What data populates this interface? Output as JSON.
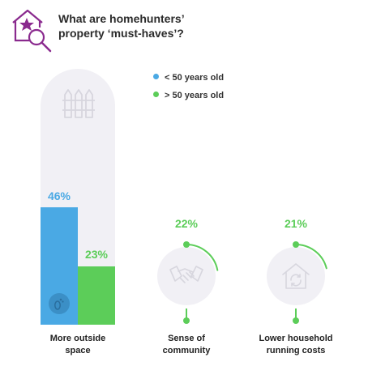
{
  "title_line1": "What are homehunters’",
  "title_line2": "property ‘must-haves’?",
  "icons": {
    "logo": "house-star-magnifier-icon",
    "fence": "fence-icon",
    "handshake": "handshake-icon",
    "house_cycle": "house-recycle-icon",
    "footprint": "footprint-icon"
  },
  "colors": {
    "under50": "#4aa9e4",
    "over50": "#5ccd59",
    "accent": "#8a2a8e",
    "track": "#f1f0f5"
  },
  "chart_data": {
    "type": "bar",
    "categories": [
      "More outside space",
      "Sense of community",
      "Lower household running costs"
    ],
    "category_lines": [
      [
        "More outside",
        "space"
      ],
      [
        "Sense of",
        "community"
      ],
      [
        "Lower household",
        "running costs"
      ]
    ],
    "series": [
      {
        "name": "< 50 years old",
        "values": [
          46,
          null,
          null
        ]
      },
      {
        "name": "> 50 years old",
        "values": [
          23,
          22,
          21
        ]
      }
    ],
    "labels": [
      "46%",
      "23%",
      "22%",
      "21%"
    ],
    "unit": "%",
    "legend_position": "top-right"
  }
}
